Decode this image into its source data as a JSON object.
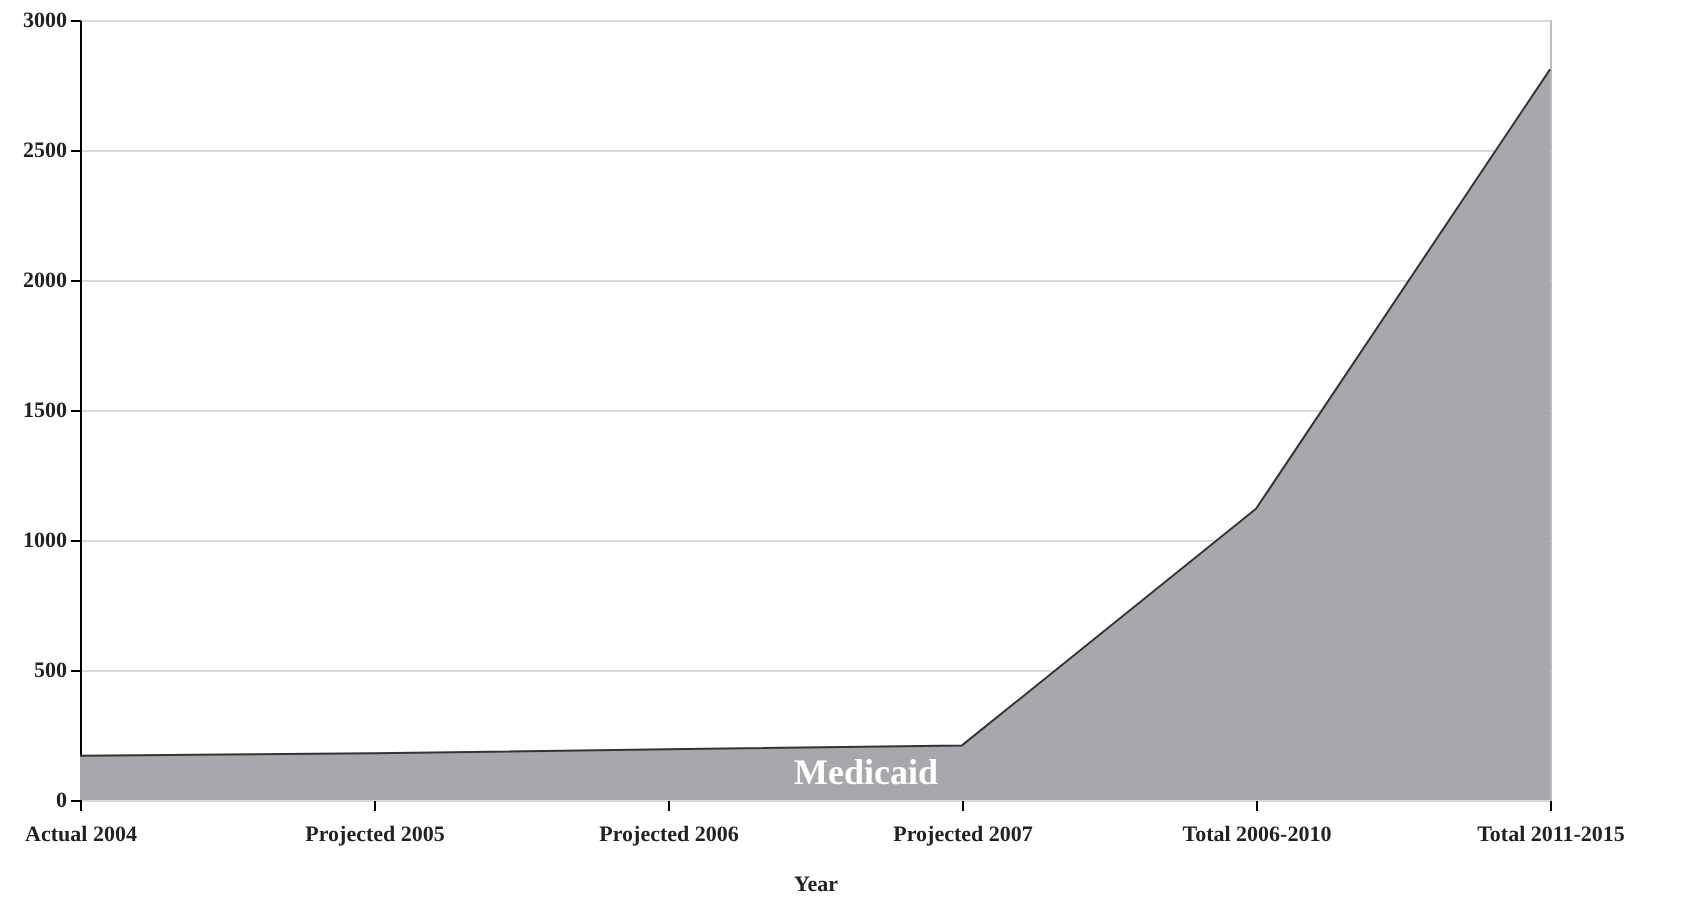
{
  "chart_data": {
    "type": "area",
    "xlabel": "Year",
    "categories": [
      "Actual 2004",
      "Projected 2005",
      "Projected 2006",
      "Projected 2007",
      "Total 2006-2010",
      "Total 2011-2015"
    ],
    "series": [
      {
        "name": "Medicaid",
        "color": "#a7a8ab",
        "values": [
          170,
          180,
          195,
          210,
          1120,
          2810
        ]
      }
    ],
    "ylim": [
      0,
      3000
    ],
    "yticks": [
      0,
      500,
      1000,
      1500,
      2000,
      2500,
      3000
    ],
    "grid": "y"
  }
}
